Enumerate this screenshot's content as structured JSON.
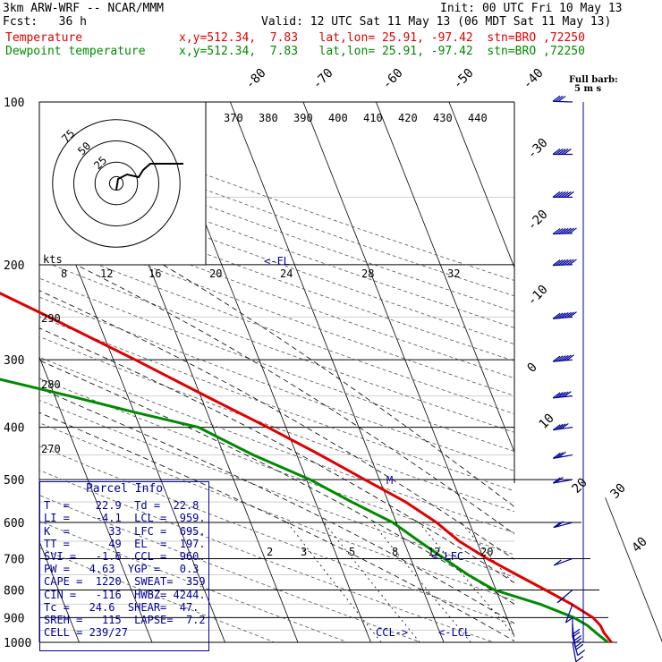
{
  "header": {
    "model": "3km ARW-WRF -- NCAR/MMM",
    "init": "Init: 00 UTC Fri 10 May 13",
    "fcst": "Fcst:   36 h",
    "valid": "Valid: 12 UTC Sat 11 May 13 (06 MDT Sat 11 May 13)",
    "line_temperature": {
      "name": "Temperature",
      "info": "x,y=512.34,  7.83   lat,lon= 25.91, -97.42  stn=BRO ,72250",
      "color": "#e00000"
    },
    "line_dewpoint": {
      "name": "Dewpoint temperature",
      "info": "x,y=512.34,  7.83   lat,lon= 25.91, -97.42  stn=BRO ,72250",
      "color": "#008a00"
    }
  },
  "barb_legend": {
    "title": "Full barb:",
    "units": "5 m s"
  },
  "parcel_info": {
    "title": "Parcel Info",
    "rows": [
      "T  =    22.9  Td =  22.8",
      "LI =    -4.1  LCL =  959.",
      "K  =      33  LFC =  695.",
      "TT =      49  EL  =  197.",
      "SVI =   -1.6  CCL =  960.",
      "PW =   4.63  YGP =   0.3",
      "CAPE =  1220  SWEAT=  359",
      "CIN =   -116  HWBZ= 4244.",
      "Tc =   24.6  SHEAR=  47.",
      "SREH =   115  LAPSE=  7.2",
      "CELL = 239/27"
    ]
  },
  "chart_data": {
    "type": "line",
    "title": "",
    "ylabel": "",
    "y_axis": {
      "ticks": [
        100,
        200,
        300,
        400,
        500,
        600,
        700,
        800,
        900,
        1000
      ]
    },
    "isotherm_labels": [
      "-80",
      "-70",
      "-60",
      "-50",
      "-40",
      "-30",
      "-20",
      "-10",
      "0",
      "10",
      "20",
      "30",
      "40"
    ],
    "theta_labels": [
      "370",
      "380",
      "390",
      "400",
      "410",
      "420",
      "430",
      "440"
    ],
    "theta_side_labels": [
      "290",
      "280",
      "270"
    ],
    "hodograph_speed_labels": [
      "8",
      "12",
      "16",
      "20",
      "24",
      "28",
      "32"
    ],
    "hodograph_units": "kts",
    "hodograph_ring_labels": [
      "75",
      "50",
      "25"
    ],
    "mixing_ratio_labels": [
      "2",
      "3",
      "5",
      "8",
      "12",
      "20"
    ],
    "annotations": [
      "<-FL",
      "M",
      "<-LFC",
      "CCL->",
      "<-LCL"
    ],
    "series": [
      {
        "name": "Temperature",
        "color": "#e00000",
        "points": [
          [
            1000,
            23.0
          ],
          [
            960,
            22.5
          ],
          [
            930,
            22.4
          ],
          [
            900,
            21.8
          ],
          [
            850,
            19.6
          ],
          [
            800,
            16.8
          ],
          [
            750,
            13.7
          ],
          [
            700,
            10.5
          ],
          [
            650,
            7.6
          ],
          [
            600,
            5.5
          ],
          [
            550,
            2.4
          ],
          [
            500,
            -2.0
          ],
          [
            450,
            -6.8
          ],
          [
            400,
            -12.5
          ],
          [
            350,
            -19.3
          ],
          [
            300,
            -27.0
          ],
          [
            250,
            -36.5
          ],
          [
            200,
            -48.5
          ],
          [
            170,
            -56.5
          ],
          [
            140,
            -64.5
          ],
          [
            120,
            -70.0
          ],
          [
            105,
            -76.0
          ],
          [
            100,
            -78.5
          ]
        ]
      },
      {
        "name": "Dewpoint temperature",
        "color": "#008a00",
        "points": [
          [
            1000,
            22.5
          ],
          [
            960,
            21.4
          ],
          [
            930,
            20.6
          ],
          [
            900,
            19.2
          ],
          [
            850,
            15.3
          ],
          [
            800,
            9.8
          ],
          [
            750,
            7.0
          ],
          [
            700,
            4.6
          ],
          [
            650,
            2.1
          ],
          [
            600,
            -0.5
          ],
          [
            550,
            -5.0
          ],
          [
            500,
            -9.5
          ],
          [
            450,
            -16.0
          ],
          [
            400,
            -22.0
          ],
          [
            375,
            -30.0
          ],
          [
            350,
            -38.0
          ],
          [
            325,
            -47.0
          ],
          [
            300,
            -56.5
          ],
          [
            290,
            -60.5
          ],
          [
            270,
            -63.0
          ],
          [
            250,
            -63.0
          ],
          [
            230,
            -65.0
          ],
          [
            200,
            -66.0
          ],
          [
            170,
            -68.0
          ],
          [
            150,
            -71.0
          ],
          [
            130,
            -77.0
          ],
          [
            120,
            -82.0
          ],
          [
            110,
            -86.0
          ],
          [
            100,
            -89.0
          ]
        ]
      }
    ],
    "wind_barbs": [
      {
        "p": 1000,
        "dir": 170,
        "spd": 8
      },
      {
        "p": 975,
        "dir": 165,
        "spd": 14
      },
      {
        "p": 950,
        "dir": 170,
        "spd": 18
      },
      {
        "p": 925,
        "dir": 175,
        "spd": 20
      },
      {
        "p": 900,
        "dir": 180,
        "spd": 18
      },
      {
        "p": 850,
        "dir": 200,
        "spd": 12
      },
      {
        "p": 800,
        "dir": 230,
        "spd": 8
      },
      {
        "p": 700,
        "dir": 250,
        "spd": 12
      },
      {
        "p": 600,
        "dir": 255,
        "spd": 18
      },
      {
        "p": 500,
        "dir": 260,
        "spd": 22
      },
      {
        "p": 450,
        "dir": 260,
        "spd": 28
      },
      {
        "p": 400,
        "dir": 262,
        "spd": 35
      },
      {
        "p": 350,
        "dir": 264,
        "spd": 45
      },
      {
        "p": 300,
        "dir": 265,
        "spd": 55
      },
      {
        "p": 250,
        "dir": 265,
        "spd": 65
      },
      {
        "p": 200,
        "dir": 268,
        "spd": 70
      },
      {
        "p": 175,
        "dir": 268,
        "spd": 72
      },
      {
        "p": 150,
        "dir": 270,
        "spd": 60
      },
      {
        "p": 125,
        "dir": 270,
        "spd": 45
      },
      {
        "p": 100,
        "dir": 272,
        "spd": 30
      }
    ]
  }
}
